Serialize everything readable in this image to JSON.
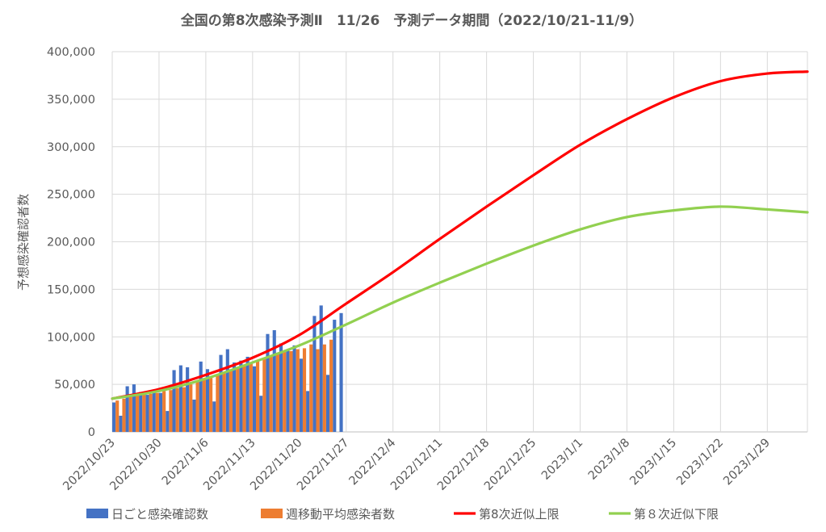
{
  "chart_data": {
    "type": "bar+line",
    "title": "全国の第8次感染予測Ⅱ　11/26　予測データ期間（2022/10/21-11/9）",
    "ylabel": "予想感染確認者数",
    "xlabel": "",
    "ylim": [
      0,
      400000
    ],
    "y_ticks": [
      "0",
      "50,000",
      "100,000",
      "150,000",
      "200,000",
      "250,000",
      "300,000",
      "350,000",
      "400,000"
    ],
    "x_tick_labels": [
      "2022/10/23",
      "2022/10/30",
      "2022/11/6",
      "2022/11/13",
      "2022/11/20",
      "2022/11/27",
      "2022/12/4",
      "2022/12/11",
      "2022/12/18",
      "2022/12/25",
      "2023/1/1",
      "2023/1/8",
      "2023/1/15",
      "2023/1/22",
      "2023/1/29"
    ],
    "x_start_date": "2022/10/23",
    "x_end_date": "2023/2/4",
    "grid": true,
    "legend_position": "bottom",
    "daily_start_date": "2022/10/23",
    "series": [
      {
        "name": "日ごと感染確認数",
        "type": "bar",
        "color": "#4472C4",
        "values": [
          31000,
          17000,
          48000,
          50000,
          42000,
          39000,
          43000,
          41000,
          22000,
          65000,
          70000,
          68000,
          34000,
          74000,
          66000,
          32000,
          81000,
          87000,
          73000,
          75000,
          79000,
          69000,
          38000,
          103000,
          107000,
          93000,
          86000,
          91000,
          77000,
          43000,
          122000,
          133000,
          60000,
          118000,
          125000
        ]
      },
      {
        "name": "週移動平均感染者数",
        "type": "bar",
        "color": "#ED7D31",
        "values": [
          33000,
          35000,
          37000,
          38000,
          39000,
          40000,
          41000,
          43000,
          44000,
          46000,
          47000,
          50000,
          53000,
          55000,
          58000,
          60000,
          63000,
          65000,
          67000,
          69000,
          72000,
          75000,
          77000,
          79000,
          83000,
          84000,
          85000,
          87000,
          88000,
          92000,
          87000,
          92000,
          97000
        ]
      },
      {
        "name": "第8次近似上限",
        "type": "line",
        "color": "#FF0000",
        "points": [
          [
            "2022/10/23",
            35000
          ],
          [
            "2022/10/30",
            45000
          ],
          [
            "2022/11/6",
            60000
          ],
          [
            "2022/11/13",
            78000
          ],
          [
            "2022/11/20",
            102000
          ],
          [
            "2022/11/27",
            135000
          ],
          [
            "2022/12/4",
            168000
          ],
          [
            "2022/12/11",
            203000
          ],
          [
            "2022/12/18",
            237000
          ],
          [
            "2022/12/25",
            270000
          ],
          [
            "2023/1/1",
            302000
          ],
          [
            "2023/1/8",
            329000
          ],
          [
            "2023/1/15",
            352000
          ],
          [
            "2023/1/22",
            369000
          ],
          [
            "2023/1/29",
            377000
          ],
          [
            "2023/2/4",
            379000
          ]
        ]
      },
      {
        "name": "第８次近似下限",
        "type": "line",
        "color": "#92D050",
        "points": [
          [
            "2022/10/23",
            35000
          ],
          [
            "2022/10/30",
            43000
          ],
          [
            "2022/11/6",
            56000
          ],
          [
            "2022/11/13",
            73000
          ],
          [
            "2022/11/20",
            91000
          ],
          [
            "2022/11/27",
            113000
          ],
          [
            "2022/12/4",
            136000
          ],
          [
            "2022/12/11",
            157000
          ],
          [
            "2022/12/18",
            177000
          ],
          [
            "2022/12/25",
            196000
          ],
          [
            "2023/1/1",
            213000
          ],
          [
            "2023/1/8",
            226000
          ],
          [
            "2023/1/15",
            233000
          ],
          [
            "2023/1/22",
            237000
          ],
          [
            "2023/1/29",
            234000
          ],
          [
            "2023/2/4",
            231000
          ]
        ]
      }
    ]
  }
}
